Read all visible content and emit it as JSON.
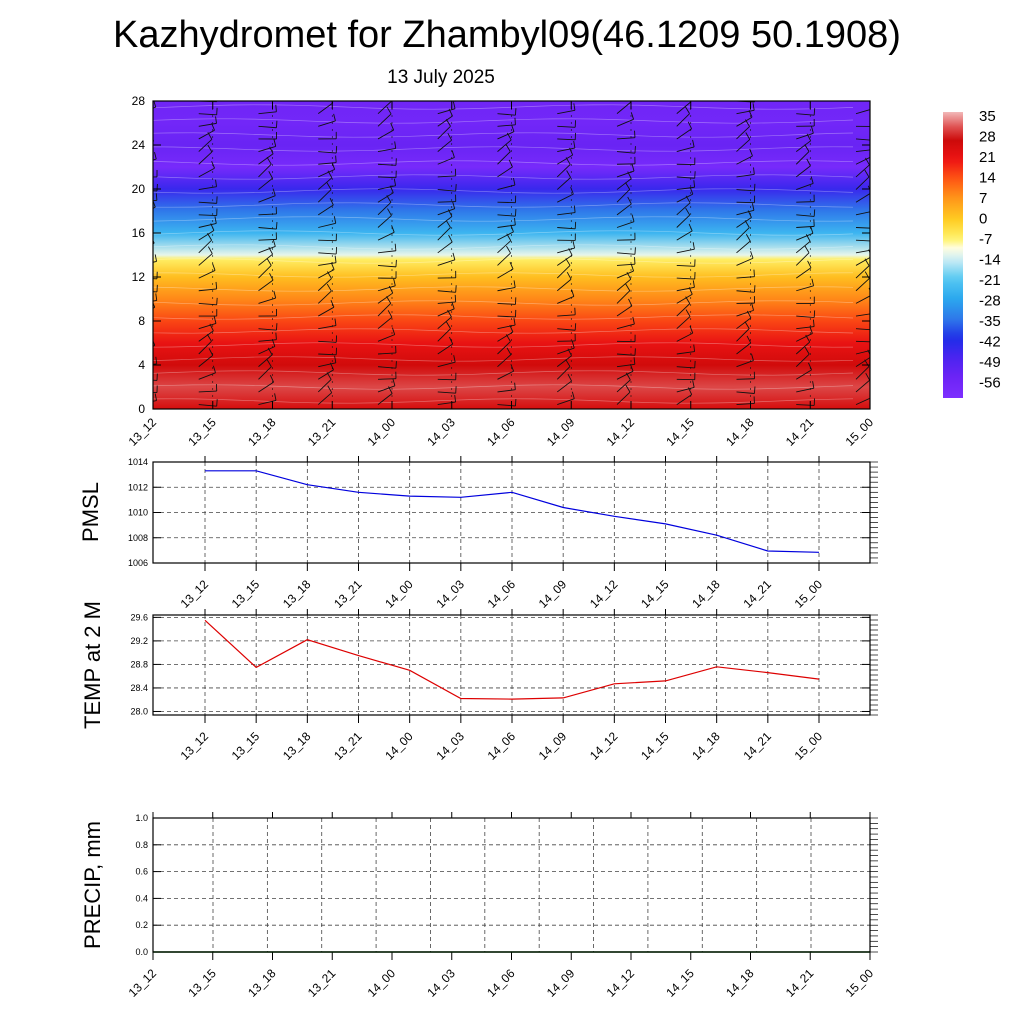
{
  "header": {
    "title": "Kazhydromet for Zhambyl09(46.1209 50.1908)",
    "subtitle": "13 July 2025"
  },
  "colors": {
    "pmsl_line": "#0000dd",
    "temp_line": "#dd0000",
    "precip_line": "#006600"
  },
  "chart_data": [
    {
      "type": "heatmap",
      "name": "vertical-profile",
      "x": [
        "13_12",
        "13_15",
        "13_18",
        "13_21",
        "14_00",
        "14_03",
        "14_06",
        "14_09",
        "14_12",
        "14_15",
        "14_18",
        "14_21",
        "15_00"
      ],
      "yticks": [
        0,
        4,
        8,
        12,
        16,
        20,
        24,
        28
      ],
      "ylim": [
        0,
        28
      ],
      "temperature_profile": [
        {
          "y": 0,
          "t": 26
        },
        {
          "y": 2,
          "t": 32
        },
        {
          "y": 4,
          "t": 27
        },
        {
          "y": 6,
          "t": 22
        },
        {
          "y": 8,
          "t": 16
        },
        {
          "y": 10,
          "t": 9
        },
        {
          "y": 12,
          "t": 2
        },
        {
          "y": 13.6,
          "t": -6
        },
        {
          "y": 14,
          "t": -12
        },
        {
          "y": 16,
          "t": -25
        },
        {
          "y": 18,
          "t": -35
        },
        {
          "y": 20,
          "t": -46
        },
        {
          "y": 22,
          "t": -60
        },
        {
          "y": 24,
          "t": -55
        },
        {
          "y": 26,
          "t": -58
        },
        {
          "y": 28,
          "t": -57
        }
      ],
      "colorbar": {
        "labels": [
          "35",
          "28",
          "21",
          "14",
          "7",
          "0",
          "-7",
          "-14",
          "-21",
          "-28",
          "-35",
          "-42",
          "-49",
          "-56"
        ],
        "range": [
          -63,
          38
        ]
      },
      "wind_barbs": "present"
    },
    {
      "type": "line",
      "name": "pmsl",
      "ylabel": "PMSL",
      "x": [
        "13_12",
        "13_15",
        "13_18",
        "13_21",
        "14_00",
        "14_03",
        "14_06",
        "14_09",
        "14_12",
        "14_15",
        "14_18",
        "14_21",
        "15_00"
      ],
      "values": [
        1013.3,
        1013.3,
        1012.2,
        1011.6,
        1011.3,
        1011.2,
        1011.6,
        1010.4,
        1009.7,
        1009.1,
        1008.2,
        1006.95,
        1006.85
      ],
      "ylim": [
        1006,
        1014
      ],
      "yticks": [
        "1006",
        "1008",
        "1010",
        "1012",
        "1014"
      ],
      "grid": true
    },
    {
      "type": "line",
      "name": "temp2m",
      "ylabel": "TEMP at 2 M",
      "x": [
        "13_12",
        "13_15",
        "13_18",
        "13_21",
        "14_00",
        "14_03",
        "14_06",
        "14_09",
        "14_12",
        "14_15",
        "14_18",
        "14_21",
        "15_00"
      ],
      "values": [
        29.55,
        28.75,
        29.22,
        28.95,
        28.7,
        28.22,
        28.21,
        28.23,
        28.47,
        28.52,
        28.76,
        28.66,
        28.55
      ],
      "ylim": [
        27.94,
        29.64
      ],
      "yticks": [
        "28.0",
        "28.4",
        "28.8",
        "29.2",
        "29.6"
      ],
      "grid": true
    },
    {
      "type": "line",
      "name": "precip",
      "ylabel": "PRECIP, mm",
      "x": [
        "13_12",
        "13_15",
        "13_18",
        "13_21",
        "14_00",
        "14_03",
        "14_06",
        "14_09",
        "14_12",
        "14_15",
        "14_18",
        "14_21",
        "15_00"
      ],
      "values": [
        0,
        0,
        0,
        0,
        0,
        0,
        0,
        0,
        0,
        0,
        0,
        0,
        0
      ],
      "ylim": [
        0,
        1
      ],
      "yticks": [
        "0.0",
        "0.2",
        "0.4",
        "0.6",
        "0.8",
        "1.0"
      ],
      "grid": true
    }
  ]
}
